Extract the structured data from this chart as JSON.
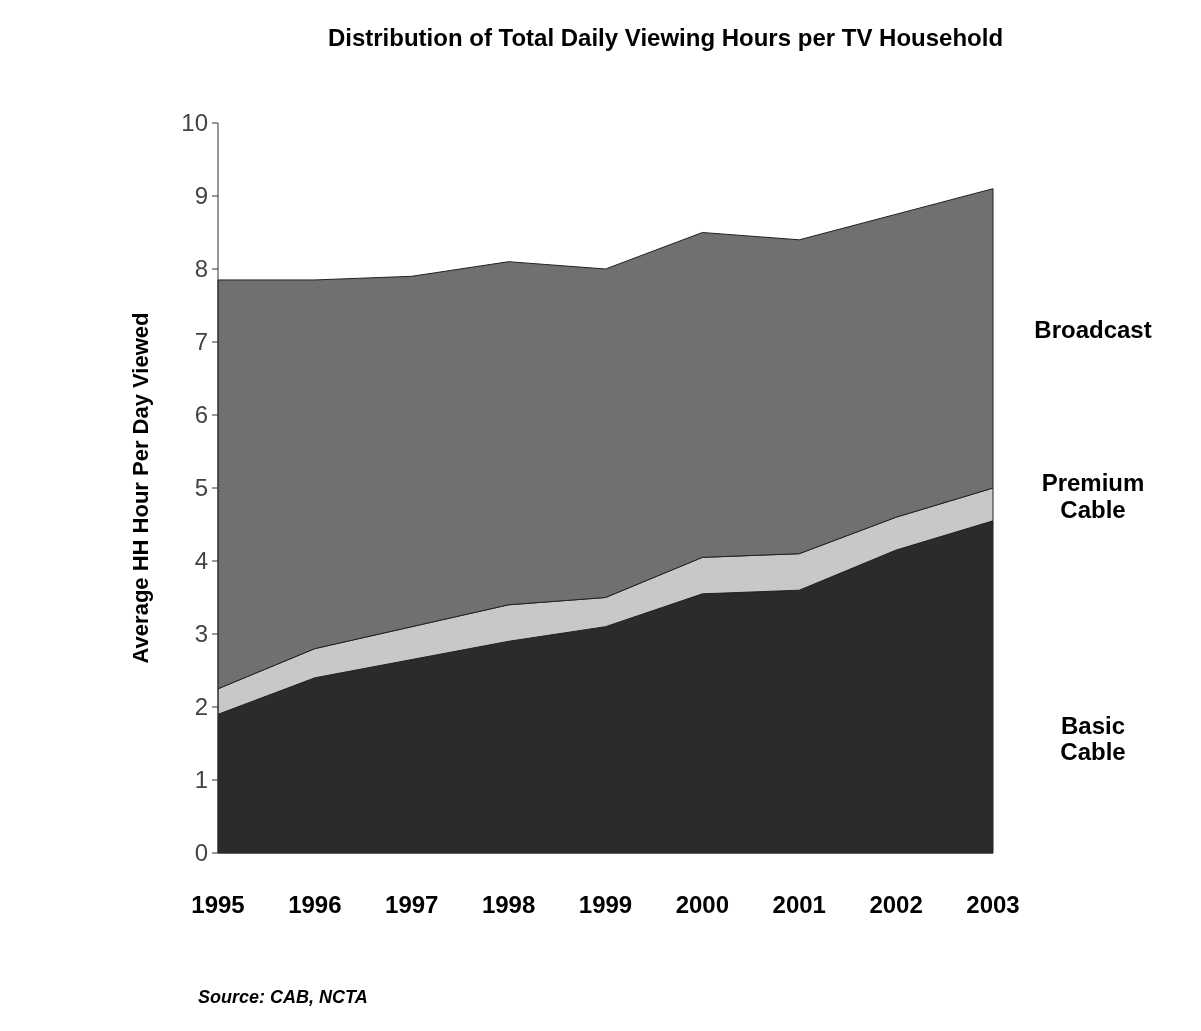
{
  "chart_data": {
    "type": "area",
    "stacked": true,
    "title": "Distribution of Total Daily Viewing Hours per TV Household",
    "ylabel": "Average HH Hour Per Day Viewed",
    "categories": [
      "1995",
      "1996",
      "1997",
      "1998",
      "1999",
      "2000",
      "2001",
      "2002",
      "2003"
    ],
    "series": [
      {
        "name": "Basic Cable",
        "color": "#2b2b2b",
        "values": [
          1.9,
          2.4,
          2.65,
          2.9,
          3.1,
          3.55,
          3.6,
          4.15,
          4.55
        ]
      },
      {
        "name": "Premium Cable",
        "color": "#c8c8c8",
        "values": [
          0.35,
          0.4,
          0.45,
          0.5,
          0.4,
          0.5,
          0.5,
          0.45,
          0.45
        ]
      },
      {
        "name": "Broadcast",
        "color": "#707070",
        "values": [
          5.6,
          5.05,
          4.8,
          4.7,
          4.5,
          4.45,
          4.3,
          4.15,
          4.1
        ]
      }
    ],
    "ylim": [
      0,
      10
    ],
    "yticks": [
      0,
      1,
      2,
      3,
      4,
      5,
      6,
      7,
      8,
      9,
      10
    ],
    "grid": false,
    "annotations": [
      "Source: CAB, NCTA"
    ]
  }
}
